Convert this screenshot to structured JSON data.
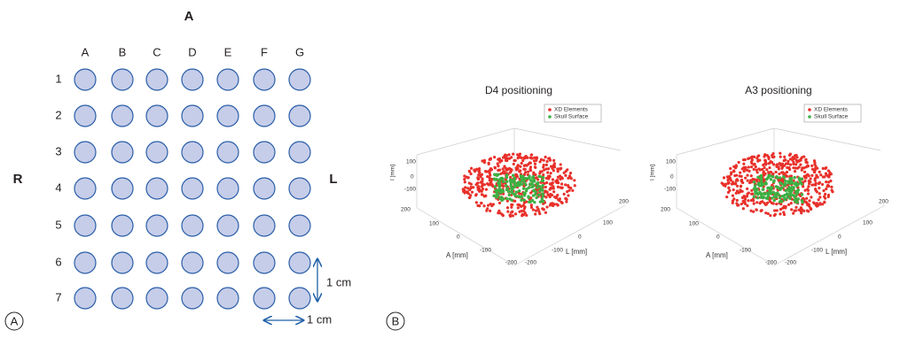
{
  "panel_a": {
    "label": "A",
    "anterior": "A",
    "right": "R",
    "left": "L",
    "columns": [
      "A",
      "B",
      "C",
      "D",
      "E",
      "F",
      "G"
    ],
    "rows": [
      "1",
      "2",
      "3",
      "4",
      "5",
      "6",
      "7"
    ],
    "scale_vertical": "1 cm",
    "scale_horizontal": "1 cm"
  },
  "panel_b": {
    "label": "B",
    "plots": [
      {
        "title": "D4 positioning",
        "legend": [
          "XD Elements",
          "Skull Surface"
        ],
        "z_axis": "I [mm]",
        "z_ticks": [
          "100",
          "0",
          "-100"
        ],
        "a_axis": "A [mm]",
        "a_ticks": [
          "200",
          "100",
          "0",
          "-100",
          "-200"
        ],
        "l_axis": "L [mm]",
        "l_ticks": [
          "-200",
          "-100",
          "0",
          "100",
          "200"
        ]
      },
      {
        "title": "A3 positioning",
        "legend": [
          "XD Elements",
          "Skull Surface"
        ],
        "z_axis": "I [mm]",
        "z_ticks": [
          "100",
          "0",
          "-100"
        ],
        "a_axis": "A [mm]",
        "a_ticks": [
          "200",
          "100",
          "0",
          "-100",
          "-200"
        ],
        "l_axis": "L [mm]",
        "l_ticks": [
          "-200",
          "-100",
          "0",
          "100",
          "200"
        ]
      }
    ]
  }
}
